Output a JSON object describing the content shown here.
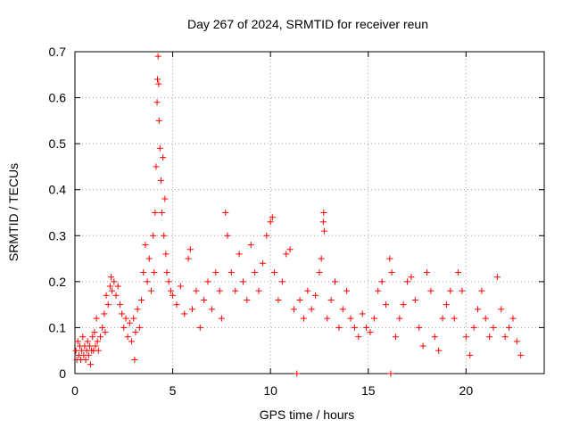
{
  "chart_data": {
    "type": "scatter",
    "title": "Day 267 of 2024, SRMTID for receiver reun",
    "xlabel": "GPS time / hours",
    "ylabel": "SRMTID / TECUs",
    "xlim": [
      0,
      24
    ],
    "ylim": [
      0,
      0.7
    ],
    "xticks": [
      0,
      5,
      10,
      15,
      20
    ],
    "yticks": [
      0,
      0.1,
      0.2,
      0.3,
      0.4,
      0.5,
      0.6,
      0.7
    ],
    "xtick_labels": [
      "0",
      "5",
      "10",
      "15",
      "20"
    ],
    "ytick_labels": [
      "0",
      "0.1",
      "0.2",
      "0.3",
      "0.4",
      "0.5",
      "0.6",
      "0.7"
    ],
    "grid": true,
    "marker": "plus",
    "color": "#ff0000",
    "series": [
      {
        "name": "SRMTID",
        "points": [
          [
            0.05,
            0.05
          ],
          [
            0.1,
            0.03
          ],
          [
            0.15,
            0.07
          ],
          [
            0.2,
            0.04
          ],
          [
            0.25,
            0.06
          ],
          [
            0.3,
            0.03
          ],
          [
            0.35,
            0.05
          ],
          [
            0.4,
            0.08
          ],
          [
            0.45,
            0.04
          ],
          [
            0.5,
            0.06
          ],
          [
            0.55,
            0.03
          ],
          [
            0.6,
            0.05
          ],
          [
            0.65,
            0.07
          ],
          [
            0.7,
            0.04
          ],
          [
            0.75,
            0.06
          ],
          [
            0.8,
            0.02
          ],
          [
            0.85,
            0.05
          ],
          [
            0.9,
            0.08
          ],
          [
            0.95,
            0.05
          ],
          [
            1.0,
            0.09
          ],
          [
            1.05,
            0.06
          ],
          [
            1.1,
            0.12
          ],
          [
            1.15,
            0.07
          ],
          [
            1.2,
            0.05
          ],
          [
            1.3,
            0.08
          ],
          [
            1.4,
            0.1
          ],
          [
            1.5,
            0.13
          ],
          [
            1.55,
            0.09
          ],
          [
            1.6,
            0.17
          ],
          [
            1.7,
            0.15
          ],
          [
            1.8,
            0.19
          ],
          [
            1.85,
            0.21
          ],
          [
            1.9,
            0.18
          ],
          [
            2.0,
            0.2
          ],
          [
            2.1,
            0.17
          ],
          [
            2.2,
            0.19
          ],
          [
            2.3,
            0.15
          ],
          [
            2.4,
            0.13
          ],
          [
            2.5,
            0.1
          ],
          [
            2.6,
            0.12
          ],
          [
            2.7,
            0.08
          ],
          [
            2.8,
            0.11
          ],
          [
            2.9,
            0.07
          ],
          [
            3.0,
            0.12
          ],
          [
            3.05,
            0.03
          ],
          [
            3.1,
            0.09
          ],
          [
            3.2,
            0.14
          ],
          [
            3.3,
            0.1
          ],
          [
            3.4,
            0.16
          ],
          [
            3.5,
            0.22
          ],
          [
            3.6,
            0.28
          ],
          [
            3.7,
            0.2
          ],
          [
            3.8,
            0.25
          ],
          [
            3.9,
            0.18
          ],
          [
            4.0,
            0.3
          ],
          [
            4.05,
            0.22
          ],
          [
            4.1,
            0.35
          ],
          [
            4.15,
            0.45
          ],
          [
            4.2,
            0.59
          ],
          [
            4.22,
            0.64
          ],
          [
            4.25,
            0.69
          ],
          [
            4.28,
            0.63
          ],
          [
            4.3,
            0.55
          ],
          [
            4.35,
            0.49
          ],
          [
            4.4,
            0.42
          ],
          [
            4.45,
            0.35
          ],
          [
            4.5,
            0.47
          ],
          [
            4.55,
            0.3
          ],
          [
            4.6,
            0.38
          ],
          [
            4.65,
            0.26
          ],
          [
            4.7,
            0.22
          ],
          [
            4.8,
            0.2
          ],
          [
            4.9,
            0.18
          ],
          [
            5.0,
            0.17
          ],
          [
            5.2,
            0.15
          ],
          [
            5.4,
            0.19
          ],
          [
            5.6,
            0.13
          ],
          [
            5.8,
            0.25
          ],
          [
            5.9,
            0.27
          ],
          [
            6.0,
            0.14
          ],
          [
            6.2,
            0.18
          ],
          [
            6.4,
            0.1
          ],
          [
            6.6,
            0.16
          ],
          [
            6.8,
            0.2
          ],
          [
            7.0,
            0.14
          ],
          [
            7.2,
            0.22
          ],
          [
            7.4,
            0.18
          ],
          [
            7.5,
            0.12
          ],
          [
            7.7,
            0.35
          ],
          [
            7.8,
            0.3
          ],
          [
            8.0,
            0.22
          ],
          [
            8.2,
            0.18
          ],
          [
            8.4,
            0.26
          ],
          [
            8.6,
            0.2
          ],
          [
            8.8,
            0.16
          ],
          [
            9.0,
            0.28
          ],
          [
            9.2,
            0.22
          ],
          [
            9.4,
            0.18
          ],
          [
            9.6,
            0.24
          ],
          [
            9.8,
            0.3
          ],
          [
            10.0,
            0.33
          ],
          [
            10.1,
            0.34
          ],
          [
            10.2,
            0.22
          ],
          [
            10.4,
            0.16
          ],
          [
            10.6,
            0.2
          ],
          [
            10.8,
            0.26
          ],
          [
            11.0,
            0.27
          ],
          [
            11.2,
            0.14
          ],
          [
            11.35,
            0.0
          ],
          [
            11.5,
            0.16
          ],
          [
            11.7,
            0.12
          ],
          [
            11.9,
            0.18
          ],
          [
            12.1,
            0.14
          ],
          [
            12.3,
            0.17
          ],
          [
            12.5,
            0.22
          ],
          [
            12.6,
            0.25
          ],
          [
            12.7,
            0.33
          ],
          [
            12.72,
            0.35
          ],
          [
            12.75,
            0.31
          ],
          [
            12.9,
            0.12
          ],
          [
            13.1,
            0.16
          ],
          [
            13.3,
            0.2
          ],
          [
            13.5,
            0.1
          ],
          [
            13.7,
            0.14
          ],
          [
            13.9,
            0.18
          ],
          [
            14.1,
            0.12
          ],
          [
            14.3,
            0.1
          ],
          [
            14.5,
            0.08
          ],
          [
            14.7,
            0.13
          ],
          [
            14.9,
            0.1
          ],
          [
            15.1,
            0.09
          ],
          [
            15.3,
            0.12
          ],
          [
            15.5,
            0.18
          ],
          [
            15.7,
            0.2
          ],
          [
            15.9,
            0.15
          ],
          [
            16.1,
            0.25
          ],
          [
            16.15,
            0.0
          ],
          [
            16.2,
            0.22
          ],
          [
            16.4,
            0.08
          ],
          [
            16.6,
            0.12
          ],
          [
            16.8,
            0.15
          ],
          [
            17.0,
            0.2
          ],
          [
            17.2,
            0.21
          ],
          [
            17.4,
            0.16
          ],
          [
            17.6,
            0.1
          ],
          [
            17.8,
            0.06
          ],
          [
            18.0,
            0.22
          ],
          [
            18.2,
            0.18
          ],
          [
            18.4,
            0.08
          ],
          [
            18.6,
            0.05
          ],
          [
            18.8,
            0.12
          ],
          [
            19.0,
            0.15
          ],
          [
            19.2,
            0.18
          ],
          [
            19.4,
            0.12
          ],
          [
            19.6,
            0.22
          ],
          [
            19.8,
            0.18
          ],
          [
            20.0,
            0.08
          ],
          [
            20.2,
            0.04
          ],
          [
            20.4,
            0.1
          ],
          [
            20.6,
            0.14
          ],
          [
            20.8,
            0.18
          ],
          [
            21.0,
            0.12
          ],
          [
            21.2,
            0.08
          ],
          [
            21.4,
            0.1
          ],
          [
            21.6,
            0.21
          ],
          [
            21.8,
            0.14
          ],
          [
            22.0,
            0.08
          ],
          [
            22.2,
            0.1
          ],
          [
            22.4,
            0.12
          ],
          [
            22.6,
            0.07
          ],
          [
            22.8,
            0.04
          ]
        ]
      }
    ]
  }
}
